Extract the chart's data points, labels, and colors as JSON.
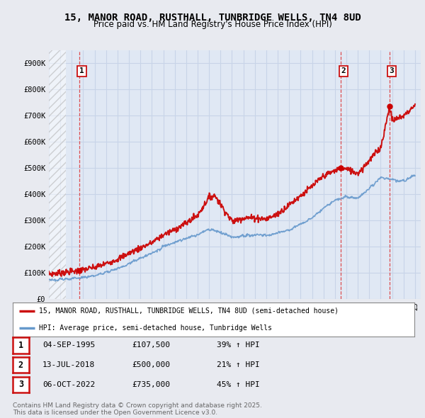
{
  "title": "15, MANOR ROAD, RUSTHALL, TUNBRIDGE WELLS, TN4 8UD",
  "subtitle": "Price paid vs. HM Land Registry's House Price Index (HPI)",
  "ylim": [
    0,
    950000
  ],
  "yticks": [
    0,
    100000,
    200000,
    300000,
    400000,
    500000,
    600000,
    700000,
    800000,
    900000
  ],
  "ytick_labels": [
    "£0",
    "£100K",
    "£200K",
    "£300K",
    "£400K",
    "£500K",
    "£600K",
    "£700K",
    "£800K",
    "£900K"
  ],
  "xlim_start": 1993,
  "xlim_end": 2025.5,
  "bg_color": "#e8eaf0",
  "plot_bg_color": "#e0e8f4",
  "grid_color": "#c8d4e8",
  "hpi_line_color": "#6699cc",
  "price_line_color": "#cc1111",
  "sale_marker_color": "#cc0000",
  "vline_color": "#dd3333",
  "sale_points": [
    {
      "year": 1995.67,
      "price": 107500,
      "label": "1"
    },
    {
      "year": 2018.53,
      "price": 500000,
      "label": "2"
    },
    {
      "year": 2022.76,
      "price": 735000,
      "label": "3"
    }
  ],
  "legend_entries": [
    "15, MANOR ROAD, RUSTHALL, TUNBRIDGE WELLS, TN4 8UD (semi-detached house)",
    "HPI: Average price, semi-detached house, Tunbridge Wells"
  ],
  "table_rows": [
    {
      "num": "1",
      "date": "04-SEP-1995",
      "price": "£107,500",
      "change": "39% ↑ HPI"
    },
    {
      "num": "2",
      "date": "13-JUL-2018",
      "price": "£500,000",
      "change": "21% ↑ HPI"
    },
    {
      "num": "3",
      "date": "06-OCT-2022",
      "price": "£735,000",
      "change": "45% ↑ HPI"
    }
  ],
  "footer": "Contains HM Land Registry data © Crown copyright and database right 2025.\nThis data is licensed under the Open Government Licence v3.0."
}
